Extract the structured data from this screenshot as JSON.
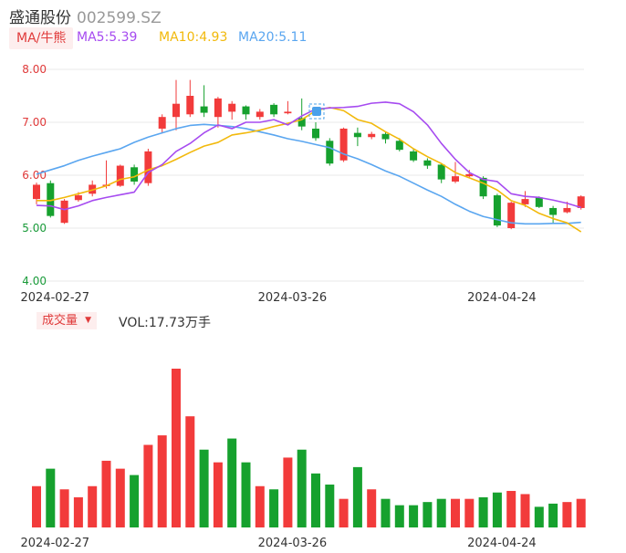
{
  "header": {
    "stock_name": "盛通股份",
    "stock_code": "002599.SZ"
  },
  "indicators": {
    "ma_selector_label": "MA/牛熊",
    "ma5": "MA5:5.39",
    "ma10": "MA10:4.93",
    "ma20": "MA20:5.11",
    "ma5_color": "#a64bf0",
    "ma10_color": "#f2b90c",
    "ma20_color": "#5aa6f0"
  },
  "volume_panel": {
    "selector_label": "成交量",
    "dropdown_arrow": "▼",
    "volume_text": "VOL:17.73万手"
  },
  "colors": {
    "up": "#f23b3b",
    "down": "#16a12e",
    "grid": "#e8e8e8"
  },
  "chart_data": {
    "type": "candlestick",
    "y_ticks": [
      "8.00",
      "7.00",
      "6.00",
      "5.00",
      "4.00"
    ],
    "ylim": [
      4.0,
      8.0
    ],
    "x_tick_labels": [
      {
        "index": 1,
        "label": "2024-02-27"
      },
      {
        "index": 18,
        "label": "2024-03-26"
      },
      {
        "index": 33,
        "label": "2024-04-24"
      }
    ],
    "candles": [
      {
        "o": 5.55,
        "c": 5.82,
        "h": 5.86,
        "l": 5.45
      },
      {
        "o": 5.85,
        "c": 5.23,
        "h": 5.9,
        "l": 5.2
      },
      {
        "o": 5.1,
        "c": 5.52,
        "h": 5.55,
        "l": 5.08
      },
      {
        "o": 5.53,
        "c": 5.62,
        "h": 5.68,
        "l": 5.5
      },
      {
        "o": 5.65,
        "c": 5.82,
        "h": 5.9,
        "l": 5.6
      },
      {
        "o": 5.82,
        "c": 5.82,
        "h": 6.28,
        "l": 5.75
      },
      {
        "o": 5.8,
        "c": 6.18,
        "h": 6.2,
        "l": 5.78
      },
      {
        "o": 6.15,
        "c": 5.88,
        "h": 6.2,
        "l": 5.82
      },
      {
        "o": 5.85,
        "c": 6.45,
        "h": 6.5,
        "l": 5.8
      },
      {
        "o": 6.88,
        "c": 7.1,
        "h": 7.15,
        "l": 6.8
      },
      {
        "o": 7.1,
        "c": 7.35,
        "h": 7.8,
        "l": 6.85
      },
      {
        "o": 7.15,
        "c": 7.5,
        "h": 7.8,
        "l": 7.1
      },
      {
        "o": 7.3,
        "c": 7.18,
        "h": 7.7,
        "l": 7.1
      },
      {
        "o": 7.1,
        "c": 7.45,
        "h": 7.48,
        "l": 6.9
      },
      {
        "o": 7.2,
        "c": 7.35,
        "h": 7.4,
        "l": 7.05
      },
      {
        "o": 7.3,
        "c": 7.15,
        "h": 7.32,
        "l": 7.05
      },
      {
        "o": 7.1,
        "c": 7.2,
        "h": 7.25,
        "l": 7.05
      },
      {
        "o": 7.33,
        "c": 7.15,
        "h": 7.36,
        "l": 7.1
      },
      {
        "o": 7.17,
        "c": 7.2,
        "h": 7.4,
        "l": 7.15
      },
      {
        "o": 7.08,
        "c": 6.92,
        "h": 7.45,
        "l": 6.85
      },
      {
        "o": 6.88,
        "c": 6.7,
        "h": 7.0,
        "l": 6.65
      },
      {
        "o": 6.65,
        "c": 6.22,
        "h": 6.7,
        "l": 6.18
      },
      {
        "o": 6.28,
        "c": 6.88,
        "h": 6.9,
        "l": 6.25
      },
      {
        "o": 6.8,
        "c": 6.72,
        "h": 6.9,
        "l": 6.55
      },
      {
        "o": 6.72,
        "c": 6.78,
        "h": 6.82,
        "l": 6.68
      },
      {
        "o": 6.78,
        "c": 6.68,
        "h": 6.82,
        "l": 6.6
      },
      {
        "o": 6.65,
        "c": 6.48,
        "h": 6.7,
        "l": 6.45
      },
      {
        "o": 6.45,
        "c": 6.28,
        "h": 6.5,
        "l": 6.25
      },
      {
        "o": 6.28,
        "c": 6.18,
        "h": 6.32,
        "l": 6.12
      },
      {
        "o": 6.2,
        "c": 5.92,
        "h": 6.22,
        "l": 5.85
      },
      {
        "o": 5.88,
        "c": 5.98,
        "h": 6.25,
        "l": 5.85
      },
      {
        "o": 5.98,
        "c": 6.02,
        "h": 6.1,
        "l": 5.95
      },
      {
        "o": 5.95,
        "c": 5.6,
        "h": 5.98,
        "l": 5.55
      },
      {
        "o": 5.62,
        "c": 5.05,
        "h": 5.65,
        "l": 5.02
      },
      {
        "o": 5.0,
        "c": 5.48,
        "h": 5.5,
        "l": 4.98
      },
      {
        "o": 5.45,
        "c": 5.55,
        "h": 5.7,
        "l": 5.4
      },
      {
        "o": 5.58,
        "c": 5.4,
        "h": 5.6,
        "l": 5.38
      },
      {
        "o": 5.38,
        "c": 5.25,
        "h": 5.42,
        "l": 5.1
      },
      {
        "o": 5.3,
        "c": 5.38,
        "h": 5.5,
        "l": 5.28
      },
      {
        "o": 5.38,
        "c": 5.6,
        "h": 5.62,
        "l": 5.35
      }
    ],
    "ma5": [
      5.43,
      5.42,
      5.35,
      5.42,
      5.52,
      5.58,
      5.63,
      5.68,
      6.05,
      6.2,
      6.45,
      6.6,
      6.8,
      6.95,
      6.88,
      7.0,
      7.0,
      7.05,
      6.95,
      7.12,
      7.25,
      7.27,
      7.28,
      7.3,
      7.36,
      7.38,
      7.35,
      7.2,
      6.95,
      6.6,
      6.3,
      6.05,
      5.92,
      5.88,
      5.65,
      5.6,
      5.58,
      5.53,
      5.47,
      5.39
    ],
    "ma10": [
      5.52,
      5.52,
      5.58,
      5.65,
      5.72,
      5.8,
      5.92,
      5.97,
      6.1,
      6.18,
      6.3,
      6.43,
      6.55,
      6.62,
      6.76,
      6.8,
      6.85,
      6.92,
      6.98,
      7.05,
      7.22,
      7.28,
      7.22,
      7.05,
      6.98,
      6.82,
      6.68,
      6.5,
      6.35,
      6.22,
      6.05,
      5.95,
      5.85,
      5.72,
      5.52,
      5.43,
      5.28,
      5.18,
      5.1,
      4.93
    ],
    "ma20": [
      6.02,
      6.1,
      6.18,
      6.28,
      6.36,
      6.43,
      6.5,
      6.62,
      6.72,
      6.8,
      6.88,
      6.94,
      6.96,
      6.94,
      6.92,
      6.88,
      6.82,
      6.76,
      6.69,
      6.64,
      6.58,
      6.52,
      6.4,
      6.31,
      6.2,
      6.08,
      5.98,
      5.85,
      5.72,
      5.6,
      5.45,
      5.32,
      5.22,
      5.16,
      5.1,
      5.08,
      5.08,
      5.09,
      5.09,
      5.11
    ],
    "volume": [
      {
        "v": 26,
        "dir": "up"
      },
      {
        "v": 37,
        "dir": "down"
      },
      {
        "v": 24,
        "dir": "up"
      },
      {
        "v": 19,
        "dir": "up"
      },
      {
        "v": 26,
        "dir": "up"
      },
      {
        "v": 42,
        "dir": "up"
      },
      {
        "v": 37,
        "dir": "up"
      },
      {
        "v": 33,
        "dir": "down"
      },
      {
        "v": 52,
        "dir": "up"
      },
      {
        "v": 58,
        "dir": "up"
      },
      {
        "v": 100,
        "dir": "up"
      },
      {
        "v": 70,
        "dir": "up"
      },
      {
        "v": 49,
        "dir": "down"
      },
      {
        "v": 41,
        "dir": "up"
      },
      {
        "v": 56,
        "dir": "down"
      },
      {
        "v": 41,
        "dir": "down"
      },
      {
        "v": 26,
        "dir": "up"
      },
      {
        "v": 24,
        "dir": "down"
      },
      {
        "v": 44,
        "dir": "up"
      },
      {
        "v": 49,
        "dir": "down"
      },
      {
        "v": 34,
        "dir": "down"
      },
      {
        "v": 27,
        "dir": "down"
      },
      {
        "v": 18,
        "dir": "up"
      },
      {
        "v": 38,
        "dir": "down"
      },
      {
        "v": 24,
        "dir": "up"
      },
      {
        "v": 18,
        "dir": "down"
      },
      {
        "v": 14,
        "dir": "down"
      },
      {
        "v": 14,
        "dir": "down"
      },
      {
        "v": 16,
        "dir": "down"
      },
      {
        "v": 18,
        "dir": "down"
      },
      {
        "v": 18,
        "dir": "up"
      },
      {
        "v": 18,
        "dir": "up"
      },
      {
        "v": 19,
        "dir": "down"
      },
      {
        "v": 22,
        "dir": "down"
      },
      {
        "v": 23,
        "dir": "up"
      },
      {
        "v": 21,
        "dir": "up"
      },
      {
        "v": 13,
        "dir": "down"
      },
      {
        "v": 15,
        "dir": "down"
      },
      {
        "v": 16,
        "dir": "up"
      },
      {
        "v": 18,
        "dir": "up"
      }
    ]
  }
}
